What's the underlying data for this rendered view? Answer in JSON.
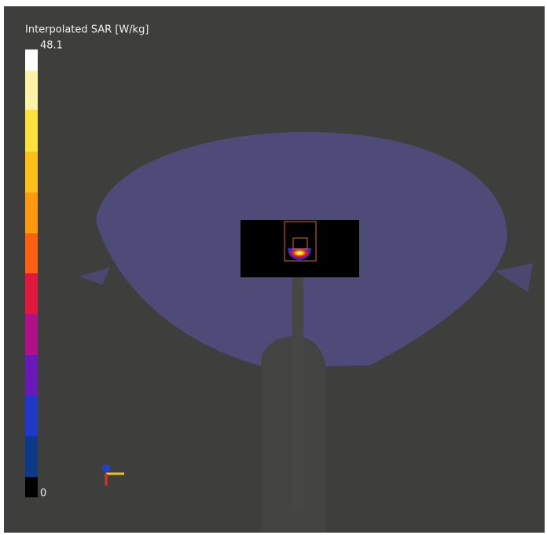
{
  "colorbar": {
    "title": "Interpolated SAR [W/kg]",
    "max": 48.1,
    "min": 0
  }
}
